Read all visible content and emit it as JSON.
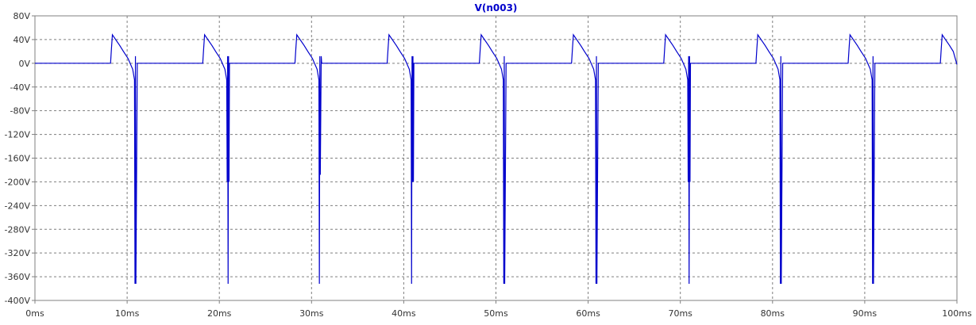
{
  "chart_data": {
    "type": "line",
    "title": "V(n003)",
    "xlabel": "",
    "ylabel": "",
    "xlim": [
      0,
      100
    ],
    "ylim": [
      -400,
      80
    ],
    "x_unit": "ms",
    "y_unit": "V",
    "grid": true,
    "x_ticks": [
      "0ms",
      "10ms",
      "20ms",
      "30ms",
      "40ms",
      "50ms",
      "60ms",
      "70ms",
      "80ms",
      "90ms",
      "100ms"
    ],
    "y_ticks": [
      "80V",
      "40V",
      "0V",
      "-40V",
      "-80V",
      "-120V",
      "-160V",
      "-200V",
      "-240V",
      "-280V",
      "-320V",
      "-360V",
      "-400V"
    ],
    "colors": {
      "trace": "#0000cc",
      "grid": "#7f7f7f",
      "frame": "#808080",
      "title": "#0000cc"
    },
    "series": [
      {
        "name": "V(n003)",
        "x": [
          0,
          8.2,
          8.3,
          8.4,
          9.2,
          9.6,
          10.1,
          10.6,
          10.8,
          10.85,
          10.9,
          10.95,
          11.1,
          11.3,
          18.2,
          18.3,
          18.4,
          19.2,
          19.6,
          20.1,
          20.6,
          20.8,
          20.85,
          20.9,
          20.95,
          21.0,
          21.05,
          21.1,
          21.3,
          28.2,
          28.3,
          28.4,
          29.2,
          29.6,
          30.1,
          30.6,
          30.8,
          30.85,
          30.9,
          30.95,
          31.05,
          31.1,
          31.3,
          38.2,
          38.3,
          38.4,
          39.2,
          39.6,
          40.1,
          40.6,
          40.8,
          40.85,
          40.9,
          40.95,
          41.0,
          41.05,
          41.1,
          41.3,
          48.2,
          48.3,
          48.4,
          49.2,
          49.6,
          50.1,
          50.6,
          50.8,
          50.85,
          50.9,
          50.95,
          51.1,
          51.3,
          58.2,
          58.3,
          58.4,
          59.2,
          59.6,
          60.1,
          60.6,
          60.8,
          60.85,
          60.9,
          60.95,
          61.1,
          61.3,
          68.2,
          68.3,
          68.4,
          69.2,
          69.6,
          70.1,
          70.6,
          70.8,
          70.85,
          70.9,
          70.95,
          71.0,
          71.05,
          71.1,
          71.3,
          78.2,
          78.3,
          78.4,
          79.2,
          79.6,
          80.1,
          80.6,
          80.8,
          80.85,
          80.9,
          80.95,
          81.1,
          81.3,
          88.2,
          88.3,
          88.4,
          89.2,
          89.6,
          90.1,
          90.6,
          90.8,
          90.85,
          90.9,
          90.95,
          91.1,
          91.3,
          98.2,
          98.3,
          98.4,
          99.2,
          99.6,
          100
        ],
        "y": [
          0,
          0,
          25,
          48,
          30,
          20,
          8,
          -10,
          -28,
          -372,
          12,
          -372,
          0,
          0,
          0,
          25,
          48,
          30,
          20,
          8,
          -10,
          -28,
          -200,
          12,
          -372,
          12,
          -200,
          0,
          0,
          0,
          25,
          48,
          30,
          20,
          8,
          -10,
          -28,
          -372,
          12,
          -188,
          12,
          0,
          0,
          0,
          25,
          48,
          30,
          20,
          8,
          -10,
          -28,
          -372,
          12,
          -200,
          12,
          -200,
          0,
          0,
          0,
          25,
          48,
          30,
          20,
          8,
          -10,
          -28,
          -372,
          12,
          -372,
          0,
          0,
          0,
          25,
          48,
          30,
          20,
          8,
          -10,
          -28,
          -372,
          12,
          -372,
          0,
          0,
          0,
          25,
          48,
          30,
          20,
          8,
          -10,
          -28,
          -200,
          12,
          -372,
          12,
          -200,
          0,
          0,
          0,
          25,
          48,
          30,
          20,
          8,
          -10,
          -28,
          -372,
          12,
          -372,
          0,
          0,
          0,
          25,
          48,
          30,
          20,
          8,
          -10,
          -28,
          -372,
          12,
          -372,
          0,
          0,
          0,
          25,
          48,
          30,
          20,
          -2
        ]
      }
    ]
  }
}
